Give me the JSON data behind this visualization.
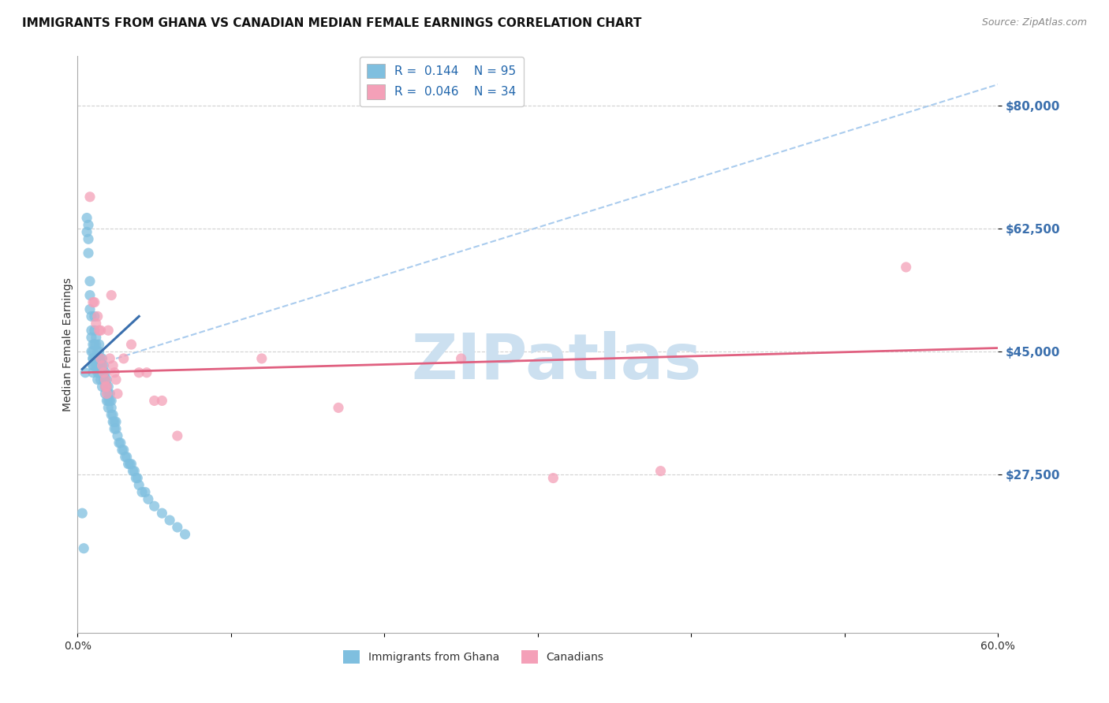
{
  "title": "IMMIGRANTS FROM GHANA VS CANADIAN MEDIAN FEMALE EARNINGS CORRELATION CHART",
  "source": "Source: ZipAtlas.com",
  "ylabel": "Median Female Earnings",
  "xlim": [
    0.0,
    0.6
  ],
  "ylim": [
    5000,
    87000
  ],
  "yticks": [
    27500,
    45000,
    62500,
    80000
  ],
  "ytick_labels": [
    "$27,500",
    "$45,000",
    "$62,500",
    "$80,000"
  ],
  "xticks": [
    0.0,
    0.1,
    0.2,
    0.3,
    0.4,
    0.5,
    0.6
  ],
  "xtick_labels": [
    "0.0%",
    "",
    "",
    "",
    "",
    "",
    "60.0%"
  ],
  "ghana_R": 0.144,
  "ghana_N": 95,
  "canadian_R": 0.046,
  "canadian_N": 34,
  "background_color": "#ffffff",
  "grid_color": "#cccccc",
  "blue_scatter_color": "#7fbfdf",
  "pink_scatter_color": "#f4a0b8",
  "blue_line_color": "#3a6fad",
  "pink_line_color": "#e06080",
  "dashed_line_color": "#aaccee",
  "title_fontsize": 11,
  "axis_label_fontsize": 10,
  "tick_label_fontsize": 10,
  "watermark_text": "ZIPatlas",
  "watermark_color": "#cce0f0",
  "ghana_x": [
    0.003,
    0.004,
    0.005,
    0.006,
    0.006,
    0.007,
    0.007,
    0.007,
    0.008,
    0.008,
    0.008,
    0.009,
    0.009,
    0.009,
    0.009,
    0.01,
    0.01,
    0.01,
    0.01,
    0.01,
    0.01,
    0.01,
    0.011,
    0.011,
    0.011,
    0.011,
    0.012,
    0.012,
    0.012,
    0.012,
    0.013,
    0.013,
    0.013,
    0.013,
    0.013,
    0.014,
    0.014,
    0.014,
    0.014,
    0.015,
    0.015,
    0.015,
    0.015,
    0.016,
    0.016,
    0.016,
    0.016,
    0.017,
    0.017,
    0.017,
    0.018,
    0.018,
    0.018,
    0.018,
    0.019,
    0.019,
    0.019,
    0.02,
    0.02,
    0.02,
    0.02,
    0.021,
    0.021,
    0.022,
    0.022,
    0.022,
    0.023,
    0.023,
    0.024,
    0.024,
    0.025,
    0.025,
    0.026,
    0.027,
    0.028,
    0.029,
    0.03,
    0.031,
    0.032,
    0.033,
    0.034,
    0.035,
    0.036,
    0.037,
    0.038,
    0.039,
    0.04,
    0.042,
    0.044,
    0.046,
    0.05,
    0.055,
    0.06,
    0.065,
    0.07
  ],
  "ghana_y": [
    22000,
    17000,
    42000,
    64000,
    62000,
    63000,
    61000,
    59000,
    55000,
    53000,
    51000,
    50000,
    48000,
    47000,
    45000,
    46000,
    45000,
    44000,
    44000,
    43000,
    43000,
    42000,
    50000,
    48000,
    46000,
    44000,
    47000,
    46000,
    44000,
    43000,
    45000,
    44000,
    43000,
    42000,
    41000,
    46000,
    45000,
    44000,
    42000,
    44000,
    43000,
    42000,
    41000,
    44000,
    43000,
    42000,
    40000,
    43000,
    42000,
    41000,
    42000,
    41000,
    40000,
    39000,
    41000,
    40000,
    38000,
    40000,
    39000,
    38000,
    37000,
    39000,
    38000,
    38000,
    37000,
    36000,
    36000,
    35000,
    35000,
    34000,
    35000,
    34000,
    33000,
    32000,
    32000,
    31000,
    31000,
    30000,
    30000,
    29000,
    29000,
    29000,
    28000,
    28000,
    27000,
    27000,
    26000,
    25000,
    25000,
    24000,
    23000,
    22000,
    21000,
    20000,
    19000
  ],
  "canadian_x": [
    0.008,
    0.01,
    0.011,
    0.012,
    0.013,
    0.014,
    0.015,
    0.015,
    0.016,
    0.017,
    0.018,
    0.018,
    0.019,
    0.019,
    0.02,
    0.021,
    0.022,
    0.023,
    0.024,
    0.025,
    0.026,
    0.03,
    0.035,
    0.04,
    0.045,
    0.05,
    0.055,
    0.065,
    0.12,
    0.17,
    0.25,
    0.31,
    0.38,
    0.54
  ],
  "canadian_y": [
    67000,
    52000,
    52000,
    49000,
    50000,
    48000,
    48000,
    44000,
    43000,
    42000,
    41000,
    40000,
    40000,
    39000,
    48000,
    44000,
    53000,
    43000,
    42000,
    41000,
    39000,
    44000,
    46000,
    42000,
    42000,
    38000,
    38000,
    33000,
    44000,
    37000,
    44000,
    27000,
    28000,
    57000
  ],
  "ghana_line_x": [
    0.003,
    0.04
  ],
  "ghana_line_y": [
    42500,
    50000
  ],
  "canadian_line_x": [
    0.003,
    0.6
  ],
  "canadian_line_y": [
    42000,
    45500
  ],
  "dashed_line_x": [
    0.025,
    0.6
  ],
  "dashed_line_y": [
    44000,
    83000
  ]
}
